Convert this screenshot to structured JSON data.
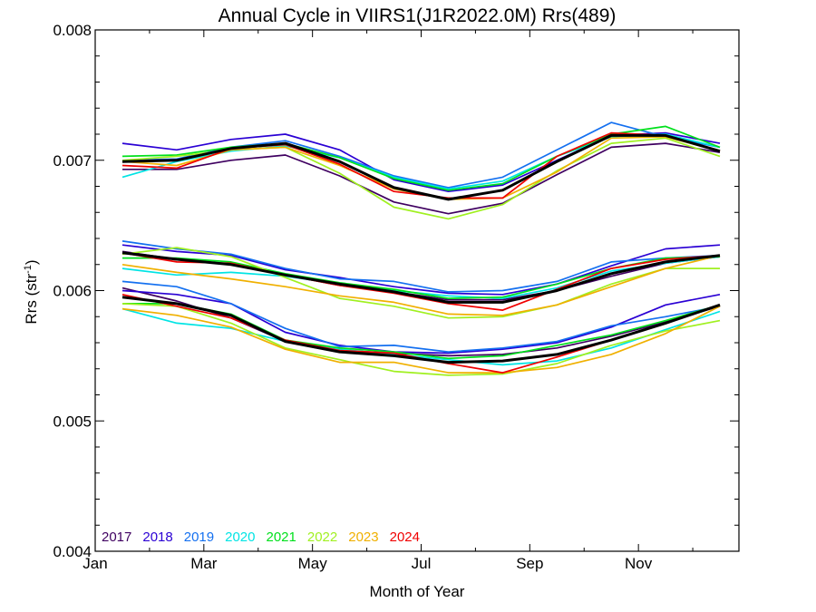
{
  "chart_data": {
    "type": "line",
    "title": "Annual Cycle in VIIRS1(J1R2022.0M) Rrs(489)",
    "xlabel": "Month of Year",
    "ylabel": {
      "main": "Rrs (str",
      "sup": "-1",
      "close": ")"
    },
    "xlim": [
      1,
      12.85
    ],
    "ylim": [
      0.004,
      0.008
    ],
    "xticks": [
      {
        "value": 1,
        "label": "Jan"
      },
      {
        "value": 3,
        "label": "Mar"
      },
      {
        "value": 5,
        "label": "May"
      },
      {
        "value": 7,
        "label": "Jul"
      },
      {
        "value": 9,
        "label": "Sep"
      },
      {
        "value": 11,
        "label": "Nov"
      }
    ],
    "yticks": [
      {
        "value": 0.004,
        "label": "0.004"
      },
      {
        "value": 0.005,
        "label": "0.005"
      },
      {
        "value": 0.006,
        "label": "0.006"
      },
      {
        "value": 0.007,
        "label": "0.007"
      },
      {
        "value": 0.008,
        "label": "0.008"
      }
    ],
    "grid": false,
    "legend_placement": "bottom-left",
    "x": [
      1.5,
      2.5,
      3.5,
      4.5,
      5.5,
      6.5,
      7.5,
      8.5,
      9.5,
      10.5,
      11.5,
      12.5
    ],
    "series": [
      {
        "name": "2017",
        "color": "#3f0060",
        "groups": [
          [
            0.00693,
            0.00693,
            0.007,
            0.00704,
            0.00688,
            0.00668,
            0.00659,
            0.00667,
            0.00689,
            0.0071,
            0.00713,
            0.00706
          ],
          [
            0.0063,
            0.00624,
            0.0062,
            0.00612,
            0.00604,
            0.00599,
            0.00593,
            0.00593,
            0.006,
            0.00611,
            0.00621,
            0.00626
          ],
          [
            0.00602,
            0.00592,
            0.00579,
            0.00561,
            0.00554,
            0.00552,
            0.0055,
            0.00551,
            0.00556,
            0.00565,
            0.00576,
            0.00588
          ]
        ]
      },
      {
        "name": "2018",
        "color": "#2a00d4",
        "groups": [
          [
            0.00713,
            0.00708,
            0.00716,
            0.0072,
            0.00708,
            0.00685,
            0.00676,
            0.00681,
            0.007,
            0.00719,
            0.00721,
            0.00713
          ],
          [
            0.00635,
            0.0063,
            0.00627,
            0.00616,
            0.0061,
            0.00603,
            0.00598,
            0.00597,
            0.00605,
            0.00619,
            0.00632,
            0.00635
          ],
          [
            0.006,
            0.00597,
            0.0059,
            0.00568,
            0.00558,
            0.00553,
            0.00552,
            0.00555,
            0.0056,
            0.00572,
            0.00589,
            0.00597
          ]
        ]
      },
      {
        "name": "2019",
        "color": "#1470f0",
        "groups": [
          [
            0.007,
            0.00701,
            0.0071,
            0.00715,
            0.00703,
            0.00688,
            0.00679,
            0.00687,
            0.00708,
            0.00729,
            0.00718,
            0.0071
          ],
          [
            0.00638,
            0.00632,
            0.00628,
            0.00617,
            0.00609,
            0.00607,
            0.00599,
            0.006,
            0.00607,
            0.00622,
            0.00625,
            0.00627
          ],
          [
            0.00607,
            0.00603,
            0.0059,
            0.00571,
            0.00557,
            0.00558,
            0.00553,
            0.00556,
            0.00561,
            0.00573,
            0.0058,
            0.00588
          ]
        ]
      },
      {
        "name": "2020",
        "color": "#00e4e4",
        "groups": [
          [
            0.00687,
            0.00699,
            0.00707,
            0.00711,
            0.00702,
            0.00687,
            0.00678,
            0.00684,
            0.00703,
            0.00718,
            0.0072,
            0.0071
          ],
          [
            0.00617,
            0.00612,
            0.00614,
            0.00611,
            0.00605,
            0.006,
            0.00596,
            0.00594,
            0.00602,
            0.00615,
            0.00621,
            0.00626
          ],
          [
            0.00586,
            0.00575,
            0.00571,
            0.00561,
            0.00555,
            0.00551,
            0.00547,
            0.00543,
            0.00546,
            0.00556,
            0.0057,
            0.00584
          ]
        ]
      },
      {
        "name": "2021",
        "color": "#00e01c",
        "groups": [
          [
            0.00703,
            0.00704,
            0.0071,
            0.00713,
            0.00702,
            0.00686,
            0.00677,
            0.00682,
            0.00703,
            0.0072,
            0.00726,
            0.0071
          ],
          [
            0.00625,
            0.00625,
            0.00622,
            0.00613,
            0.00606,
            0.00601,
            0.00594,
            0.00595,
            0.00605,
            0.00617,
            0.00625,
            0.00626
          ],
          [
            0.0059,
            0.0059,
            0.00582,
            0.00562,
            0.00556,
            0.00553,
            0.00548,
            0.0055,
            0.00558,
            0.00566,
            0.00577,
            0.00589
          ]
        ]
      },
      {
        "name": "2022",
        "color": "#a0f020",
        "groups": [
          [
            0.007,
            0.00703,
            0.00708,
            0.0071,
            0.0069,
            0.00664,
            0.00655,
            0.00666,
            0.00692,
            0.00713,
            0.00717,
            0.00703
          ],
          [
            0.00628,
            0.00633,
            0.00626,
            0.0061,
            0.00594,
            0.00588,
            0.00579,
            0.0058,
            0.00589,
            0.00605,
            0.00617,
            0.00617
          ],
          [
            0.0059,
            0.00588,
            0.00575,
            0.00556,
            0.00547,
            0.00538,
            0.00535,
            0.00536,
            0.00544,
            0.00558,
            0.00569,
            0.00577
          ]
        ]
      },
      {
        "name": "2023",
        "color": "#f0b000",
        "groups": [
          [
            0.00699,
            0.00696,
            0.00708,
            0.0071,
            0.00696,
            0.00678,
            0.0067,
            0.00671,
            0.00691,
            0.00717,
            0.00718,
            0.00707
          ],
          [
            0.0062,
            0.00614,
            0.00609,
            0.00603,
            0.00596,
            0.00591,
            0.00582,
            0.00581,
            0.00589,
            0.00603,
            0.00617,
            0.00627
          ],
          [
            0.00586,
            0.00581,
            0.00572,
            0.00555,
            0.00545,
            0.00545,
            0.00537,
            0.00537,
            0.00541,
            0.00551,
            0.00567,
            0.00588
          ]
        ]
      },
      {
        "name": "2024",
        "color": "#f00000",
        "groups": [
          [
            0.00696,
            0.00694,
            0.00709,
            0.00712,
            0.00697,
            0.00676,
            0.00671,
            0.00671,
            0.00703,
            0.00721,
            0.00719,
            0.00707
          ],
          [
            0.00629,
            0.00622,
            0.00621,
            0.00612,
            0.00604,
            0.00598,
            0.0059,
            0.00585,
            0.00601,
            0.00617,
            0.00624,
            0.00627
          ],
          [
            0.00597,
            0.00588,
            0.00579,
            0.00562,
            0.00554,
            0.00552,
            0.00544,
            0.00537,
            0.00549,
            0.00562,
            0.00575,
            0.00589
          ]
        ]
      },
      {
        "color": "#000000",
        "width": 3,
        "groups": [
          [
            0.00699,
            0.007,
            0.00709,
            0.00713,
            0.00699,
            0.00679,
            0.0067,
            0.00677,
            0.00699,
            0.00719,
            0.00719,
            0.00707
          ],
          [
            0.00629,
            0.00624,
            0.0062,
            0.00612,
            0.00605,
            0.00599,
            0.00591,
            0.00591,
            0.006,
            0.00613,
            0.00622,
            0.00627
          ],
          [
            0.00595,
            0.0059,
            0.00581,
            0.00561,
            0.00553,
            0.0055,
            0.00545,
            0.00546,
            0.00551,
            0.00562,
            0.00575,
            0.00589
          ]
        ]
      }
    ]
  }
}
